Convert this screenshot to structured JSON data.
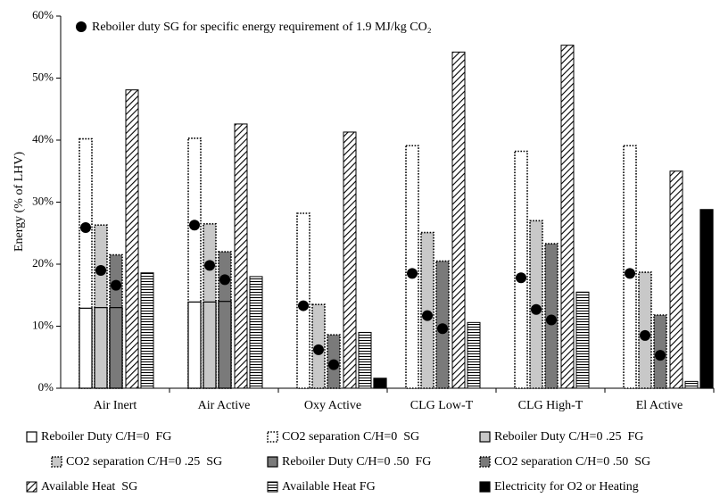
{
  "chart_data": {
    "type": "bar",
    "ylabel": "Energy (% of LHV)",
    "categories": [
      "Air Inert",
      "Air Active",
      "Oxy Active",
      "CLG Low-T",
      "CLG High-T",
      "El Active"
    ],
    "ylim": [
      0,
      60
    ],
    "yticks": [
      {
        "value": 0,
        "label": "0%"
      },
      {
        "value": 10,
        "label": "10%"
      },
      {
        "value": 20,
        "label": "20%"
      },
      {
        "value": 30,
        "label": "30%"
      },
      {
        "value": 40,
        "label": "40%"
      },
      {
        "value": 50,
        "label": "50%"
      },
      {
        "value": 60,
        "label": "60%"
      }
    ],
    "series": [
      {
        "name": "Reboiler Duty C/H=0  FG",
        "color": "#ffffff",
        "style": "solid",
        "values": [
          12.9,
          13.9,
          0,
          0,
          0,
          0
        ]
      },
      {
        "name": "CO2 separation C/H=0  SG",
        "color": "#ffffff",
        "style": "dotted",
        "values": [
          40.2,
          40.3,
          28.2,
          39.1,
          38.2,
          39.1
        ]
      },
      {
        "name": "Reboiler Duty C/H=0 .25  FG",
        "color": "#c8c8c8",
        "style": "solid",
        "values": [
          13.0,
          13.9,
          0,
          0,
          0,
          0
        ]
      },
      {
        "name": "CO2 separation C/H=0 .25  SG",
        "color": "#c8c8c8",
        "style": "dotted",
        "values": [
          26.3,
          26.5,
          13.5,
          25.1,
          27.0,
          18.7
        ]
      },
      {
        "name": "Reboiler Duty C/H=0 .50  FG",
        "color": "#7a7a7a",
        "style": "solid",
        "values": [
          13.0,
          14.0,
          0,
          0,
          0,
          0
        ]
      },
      {
        "name": "CO2 separation C/H=0 .50  SG",
        "color": "#7a7a7a",
        "style": "dotted",
        "values": [
          21.5,
          22.0,
          8.6,
          20.5,
          23.3,
          11.8
        ]
      },
      {
        "name": "Available Heat  SG",
        "color": "#000000",
        "style": "hatch",
        "values": [
          48.1,
          42.6,
          41.3,
          54.2,
          55.3,
          35.0
        ]
      },
      {
        "name": "Available Heat FG",
        "color": "#000000",
        "style": "hlines",
        "values": [
          18.6,
          18.0,
          9.0,
          10.6,
          15.5,
          1.1
        ]
      },
      {
        "name": "Electricity for O2 or Heating",
        "color": "#000000",
        "style": "solid",
        "values": [
          0,
          0,
          1.6,
          0,
          0,
          28.8
        ]
      }
    ],
    "dots": {
      "name": "Reboiler duty SG for specific energy requirement of 1.9 MJ/kg CO₂",
      "color": "#000000",
      "values": [
        [
          25.9,
          19.0,
          16.6
        ],
        [
          26.3,
          19.8,
          17.5
        ],
        [
          13.3,
          6.2,
          3.8
        ],
        [
          18.5,
          11.7,
          9.6
        ],
        [
          17.8,
          12.7,
          11.0
        ],
        [
          18.5,
          8.5,
          5.3
        ]
      ]
    }
  }
}
